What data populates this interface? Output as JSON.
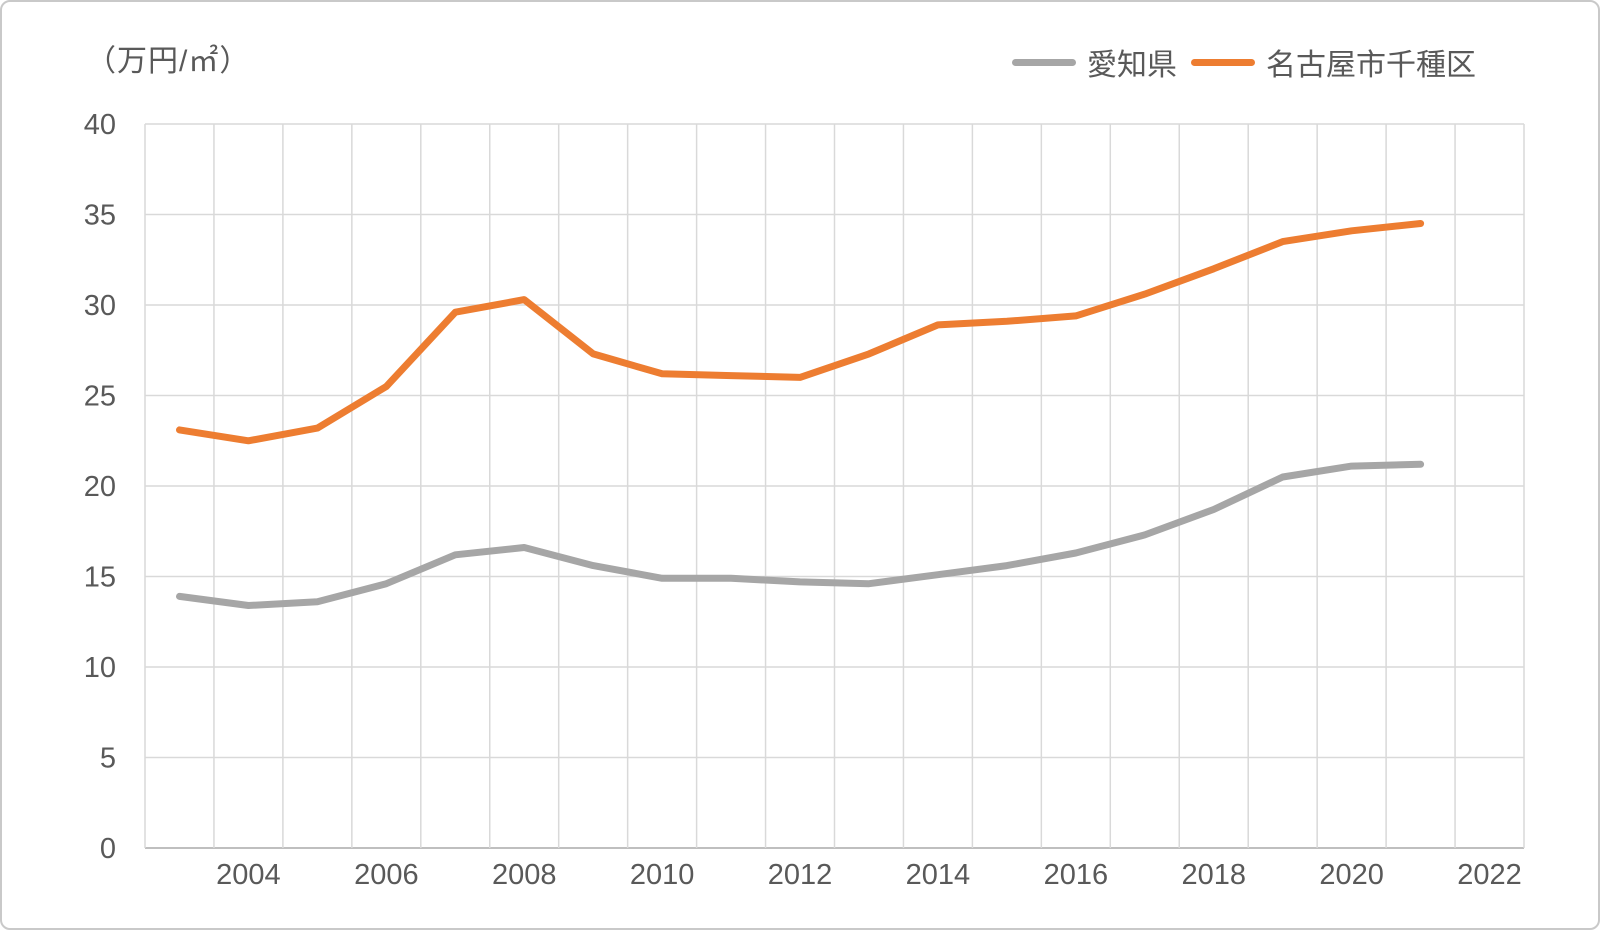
{
  "chart_data": {
    "type": "line",
    "title": "",
    "unit_label": "（万円/㎡）",
    "grid": "both",
    "legend_position": "top-right",
    "x_axis": {
      "first_slot_year": 2003,
      "last_slot_year": 2022,
      "tick_labels": [
        "2004",
        "2006",
        "2008",
        "2010",
        "2012",
        "2014",
        "2016",
        "2018",
        "2020",
        "2022"
      ]
    },
    "y_axis": {
      "min": 0,
      "max": 40,
      "ticks": [
        0,
        5,
        10,
        15,
        20,
        25,
        30,
        35,
        40
      ]
    },
    "years": [
      2003,
      2004,
      2005,
      2006,
      2007,
      2008,
      2009,
      2010,
      2011,
      2012,
      2013,
      2014,
      2015,
      2016,
      2017,
      2018,
      2019,
      2020,
      2021
    ],
    "series": [
      {
        "name": "愛知県",
        "color": "#A6A6A6",
        "values": [
          13.9,
          13.4,
          13.6,
          14.6,
          16.2,
          16.6,
          15.6,
          14.9,
          14.9,
          14.7,
          14.6,
          15.1,
          15.6,
          16.3,
          17.3,
          18.7,
          20.5,
          21.1,
          21.2
        ]
      },
      {
        "name": "名古屋市千種区",
        "color": "#ED7D31",
        "values": [
          23.1,
          22.5,
          23.2,
          25.5,
          29.6,
          30.3,
          27.3,
          26.2,
          26.1,
          26.0,
          27.3,
          28.9,
          29.1,
          29.4,
          30.6,
          32.0,
          33.5,
          34.1,
          34.5
        ]
      }
    ],
    "colors": {
      "gridline": "#D9D9D9",
      "axis_line": "#BFBFBF",
      "tick_text": "#595959"
    }
  }
}
